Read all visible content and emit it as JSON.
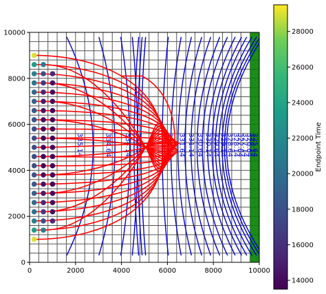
{
  "chart_data": {
    "type": "scatter",
    "xlim": [
      0,
      10000
    ],
    "ylim": [
      0,
      10000
    ],
    "x_ticks": [
      "0",
      "2000",
      "4000",
      "6000",
      "8000",
      "10000"
    ],
    "y_ticks": [
      "0",
      "2000",
      "4000",
      "6000",
      "8000",
      "10000"
    ],
    "grid": true,
    "grid_color": "#555555",
    "contour_color": "#0000cc",
    "pathline_color": "#ff0000",
    "boundary_color": "#008000",
    "contours": [
      {
        "label": "335.14",
        "x": 2000
      },
      {
        "label": "334.64",
        "x": 3250
      },
      {
        "label": "334.14",
        "x": 4100
      },
      {
        "label": "333.64",
        "x": 4550
      },
      {
        "label": "332.14",
        "x": 5950
      },
      {
        "label": "331.64",
        "x": 6450
      },
      {
        "label": "331.14",
        "x": 6850
      },
      {
        "label": "330.64",
        "x": 7250
      },
      {
        "label": "330.14",
        "x": 7600
      },
      {
        "label": "329.64",
        "x": 7950
      },
      {
        "label": "329.14",
        "x": 8250
      },
      {
        "label": "328.64",
        "x": 8550
      },
      {
        "label": "328.14",
        "x": 8800
      },
      {
        "label": "327.64",
        "x": 9000
      },
      {
        "label": "327.14",
        "x": 9200
      },
      {
        "label": "326.64",
        "x": 9380
      },
      {
        "label": "326.14",
        "x": 9520
      },
      {
        "label": "325.64",
        "x": 9640
      }
    ],
    "contour_labels_visible": [
      "335.14",
      "334.64",
      "334.14",
      "333.64",
      "332.14",
      "331.64",
      "331.14",
      "330.64",
      "330.14",
      "329.64",
      "329.14",
      "328.64",
      "328.14",
      "327.64",
      "327.14",
      "326.64",
      "326.14",
      "325.64"
    ],
    "endpoints": [
      {
        "x": 200,
        "y": 9000,
        "t": 29000
      },
      {
        "x": 200,
        "y": 8600,
        "t": 23500
      },
      {
        "x": 200,
        "y": 8200,
        "t": 21500
      },
      {
        "x": 200,
        "y": 7800,
        "t": 20500
      },
      {
        "x": 200,
        "y": 7400,
        "t": 19800
      },
      {
        "x": 200,
        "y": 7000,
        "t": 19200
      },
      {
        "x": 200,
        "y": 6600,
        "t": 18700
      },
      {
        "x": 200,
        "y": 6200,
        "t": 18300
      },
      {
        "x": 200,
        "y": 5800,
        "t": 18000
      },
      {
        "x": 200,
        "y": 5400,
        "t": 17800
      },
      {
        "x": 200,
        "y": 5000,
        "t": 17700
      },
      {
        "x": 200,
        "y": 4600,
        "t": 17800
      },
      {
        "x": 200,
        "y": 4200,
        "t": 18000
      },
      {
        "x": 200,
        "y": 3800,
        "t": 18300
      },
      {
        "x": 200,
        "y": 3400,
        "t": 18700
      },
      {
        "x": 200,
        "y": 3000,
        "t": 19200
      },
      {
        "x": 200,
        "y": 2600,
        "t": 19800
      },
      {
        "x": 200,
        "y": 2200,
        "t": 20500
      },
      {
        "x": 200,
        "y": 1800,
        "t": 21500
      },
      {
        "x": 200,
        "y": 1400,
        "t": 23500
      },
      {
        "x": 200,
        "y": 1000,
        "t": 29000
      },
      {
        "x": 600,
        "y": 8600,
        "t": 21000
      },
      {
        "x": 600,
        "y": 8200,
        "t": 18000
      },
      {
        "x": 600,
        "y": 7800,
        "t": 16500
      },
      {
        "x": 600,
        "y": 7400,
        "t": 15500
      },
      {
        "x": 600,
        "y": 7000,
        "t": 14800
      },
      {
        "x": 600,
        "y": 6600,
        "t": 14400
      },
      {
        "x": 600,
        "y": 6200,
        "t": 14100
      },
      {
        "x": 600,
        "y": 5800,
        "t": 13900
      },
      {
        "x": 600,
        "y": 5400,
        "t": 13800
      },
      {
        "x": 600,
        "y": 5000,
        "t": 13700
      },
      {
        "x": 600,
        "y": 4600,
        "t": 13800
      },
      {
        "x": 600,
        "y": 4200,
        "t": 13900
      },
      {
        "x": 600,
        "y": 3800,
        "t": 14100
      },
      {
        "x": 600,
        "y": 3400,
        "t": 14400
      },
      {
        "x": 600,
        "y": 3000,
        "t": 14800
      },
      {
        "x": 600,
        "y": 2600,
        "t": 15500
      },
      {
        "x": 600,
        "y": 2200,
        "t": 16500
      },
      {
        "x": 600,
        "y": 1800,
        "t": 18000
      },
      {
        "x": 600,
        "y": 1400,
        "t": 21000
      },
      {
        "x": 1000,
        "y": 8200,
        "t": 15500
      },
      {
        "x": 1000,
        "y": 7800,
        "t": 14200
      },
      {
        "x": 1000,
        "y": 7400,
        "t": 13900
      },
      {
        "x": 1000,
        "y": 7000,
        "t": 13700
      },
      {
        "x": 1000,
        "y": 6600,
        "t": 13600
      },
      {
        "x": 1000,
        "y": 6200,
        "t": 13500
      },
      {
        "x": 1000,
        "y": 5800,
        "t": 13500
      },
      {
        "x": 1000,
        "y": 5400,
        "t": 13500
      },
      {
        "x": 1000,
        "y": 5000,
        "t": 13500
      },
      {
        "x": 1000,
        "y": 4600,
        "t": 13500
      },
      {
        "x": 1000,
        "y": 4200,
        "t": 13500
      },
      {
        "x": 1000,
        "y": 3800,
        "t": 13500
      },
      {
        "x": 1000,
        "y": 3400,
        "t": 13600
      },
      {
        "x": 1000,
        "y": 3000,
        "t": 13700
      },
      {
        "x": 1000,
        "y": 2600,
        "t": 13900
      },
      {
        "x": 1000,
        "y": 2200,
        "t": 14200
      },
      {
        "x": 1000,
        "y": 1800,
        "t": 15500
      }
    ],
    "colorbar": {
      "label": "Endpoint Time",
      "min": 13500,
      "max": 29500,
      "ticks": [
        "14000",
        "16000",
        "18000",
        "20000",
        "22000",
        "24000",
        "26000",
        "28000"
      ]
    }
  }
}
